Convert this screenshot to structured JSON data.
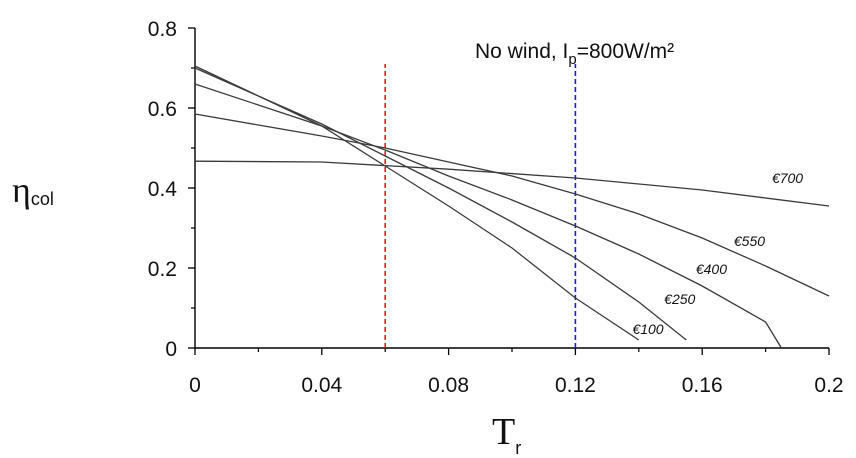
{
  "chart_data": {
    "type": "line",
    "annotation": {
      "text_before": "No wind, I",
      "subscript": "p",
      "text_after": "=800W/m²"
    },
    "ylabel": {
      "main": "η",
      "sub": "col"
    },
    "xlabel": {
      "main": "T",
      "sub": "r"
    },
    "xlim": [
      0,
      0.2
    ],
    "ylim": [
      0,
      0.8
    ],
    "xticks": [
      "0",
      "0.04",
      "0.08",
      "0.12",
      "0.16",
      "0.2"
    ],
    "yticks": [
      "0",
      "0.2",
      "0.4",
      "0.6",
      "0.8"
    ],
    "reference_lines": [
      {
        "x": 0.06,
        "color": "#e02020"
      },
      {
        "x": 0.12,
        "color": "#1a1aee"
      }
    ],
    "series": [
      {
        "name": "€100",
        "x": [
          0,
          0.04,
          0.06,
          0.08,
          0.1,
          0.12,
          0.14
        ],
        "y": [
          0.705,
          0.555,
          0.455,
          0.355,
          0.25,
          0.125,
          0.02
        ],
        "label_at": [
          0.138,
          0.035
        ]
      },
      {
        "name": "€250",
        "x": [
          0,
          0.04,
          0.06,
          0.08,
          0.1,
          0.12,
          0.14,
          0.155
        ],
        "y": [
          0.7,
          0.56,
          0.48,
          0.4,
          0.315,
          0.225,
          0.115,
          0.02
        ],
        "label_at": [
          0.148,
          0.11
        ]
      },
      {
        "name": "€400",
        "x": [
          0,
          0.04,
          0.06,
          0.08,
          0.1,
          0.12,
          0.14,
          0.16,
          0.18,
          0.185
        ],
        "y": [
          0.66,
          0.555,
          0.495,
          0.43,
          0.37,
          0.305,
          0.235,
          0.155,
          0.065,
          0.0
        ],
        "label_at": [
          0.158,
          0.185
        ]
      },
      {
        "name": "€550",
        "x": [
          0,
          0.04,
          0.06,
          0.08,
          0.1,
          0.12,
          0.14,
          0.16,
          0.18,
          0.2
        ],
        "y": [
          0.585,
          0.53,
          0.5,
          0.465,
          0.43,
          0.385,
          0.335,
          0.275,
          0.205,
          0.13
        ],
        "label_at": [
          0.17,
          0.255
        ]
      },
      {
        "name": "€700",
        "x": [
          0,
          0.04,
          0.08,
          0.12,
          0.16,
          0.2
        ],
        "y": [
          0.467,
          0.465,
          0.447,
          0.425,
          0.395,
          0.355
        ],
        "label_at": [
          0.182,
          0.412
        ]
      }
    ]
  }
}
